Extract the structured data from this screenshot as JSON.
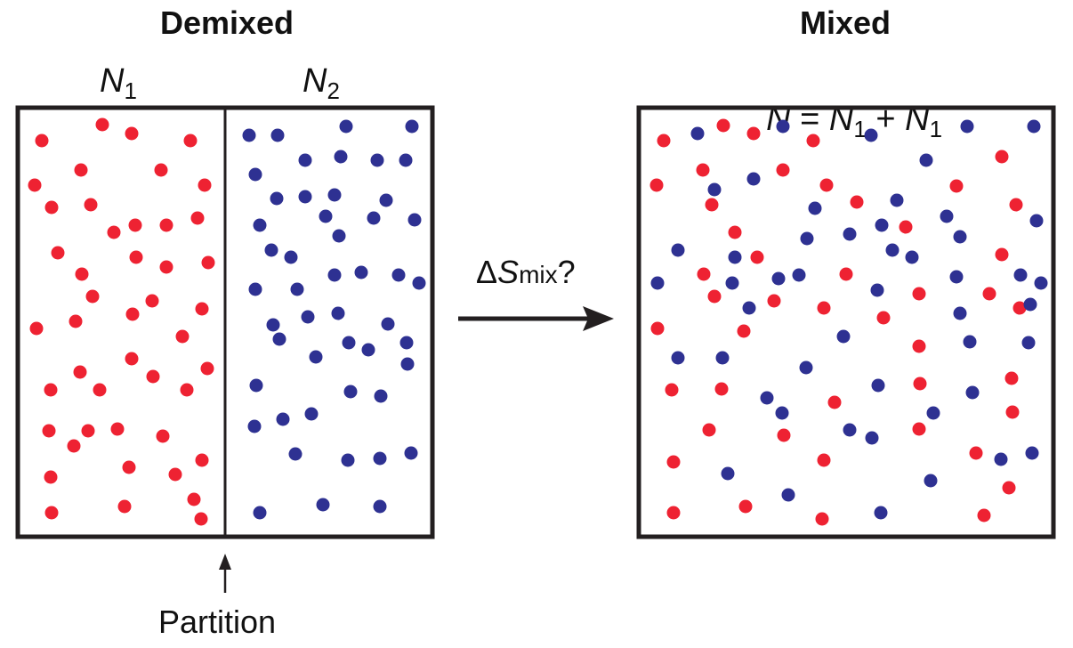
{
  "left_panel": {
    "title": "Demixed",
    "n1_symbol": "N",
    "n1_sub": "1",
    "n2_symbol": "N",
    "n2_sub": "2",
    "partition_label": "Partition"
  },
  "transition": {
    "delta": "Δ",
    "symbol": "S",
    "sub": "mix",
    "suffix": "?"
  },
  "right_panel": {
    "title": "Mixed",
    "eq_lhs": "N",
    "eq_mid": " = ",
    "eq_t1": "N",
    "eq_t1_sub": "1",
    "eq_plus": " + ",
    "eq_t2": "N",
    "eq_t2_sub": "1"
  },
  "colors": {
    "species_1": "#ee2232",
    "species_2": "#2e3192",
    "frame": "#231f20"
  }
}
